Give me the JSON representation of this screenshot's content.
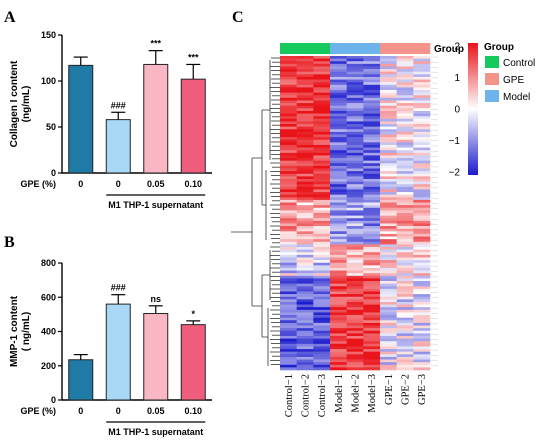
{
  "chart_data": [
    {
      "panel": "A",
      "type": "bar",
      "ylabel": [
        "Collagen I content",
        "(ng/mL)"
      ],
      "ylim": [
        0,
        150
      ],
      "yticks": [
        0,
        50,
        100,
        150
      ],
      "row_label": "GPE (%)",
      "categories": [
        "0",
        "0",
        "0.05",
        "0.10"
      ],
      "values": [
        117,
        58,
        118,
        102
      ],
      "errors": [
        9,
        8,
        15,
        16
      ],
      "significance": [
        "",
        "###",
        "***",
        "***"
      ],
      "group_label": "M1 THP-1 supernatant",
      "colors": [
        "#1f7aa6",
        "#a8d8f5",
        "#f8b7c3",
        "#ef5f7d"
      ]
    },
    {
      "panel": "B",
      "type": "bar",
      "ylabel": [
        "MMP-1 content",
        "( ng/mL)"
      ],
      "ylim": [
        0,
        800
      ],
      "yticks": [
        0,
        200,
        400,
        600,
        800
      ],
      "row_label": "GPE (%)",
      "categories": [
        "0",
        "0",
        "0.05",
        "0.10"
      ],
      "values": [
        235,
        560,
        505,
        440
      ],
      "errors": [
        30,
        55,
        45,
        22
      ],
      "significance": [
        "",
        "###",
        "ns",
        "*"
      ],
      "group_label": "M1 THP-1 supernatant",
      "colors": [
        "#1f7aa6",
        "#a8d8f5",
        "#f8b7c3",
        "#ef5f7d"
      ]
    },
    {
      "panel": "C",
      "type": "heatmap",
      "columns": [
        "Control−1",
        "Control−2",
        "Control−3",
        "Model−1",
        "Model−2",
        "Model−3",
        "GPE−1",
        "GPE−2",
        "GPE−3"
      ],
      "column_groups": [
        "Control",
        "Control",
        "Control",
        "Model",
        "Model",
        "Model",
        "GPE",
        "GPE",
        "GPE"
      ],
      "annotation_title": "Group",
      "group_legend": [
        {
          "name": "Control",
          "color": "#16c95c"
        },
        {
          "name": "GPE",
          "color": "#f4938a"
        },
        {
          "name": "Model",
          "color": "#6eb4ec"
        }
      ],
      "color_scale": {
        "min": -2,
        "max": 2,
        "ticks": [
          "2",
          "1",
          "0",
          "−1",
          "−2"
        ],
        "low_color": "#1a1acc",
        "mid_color": "#ffffff",
        "high_color": "#e8141a"
      }
    }
  ]
}
